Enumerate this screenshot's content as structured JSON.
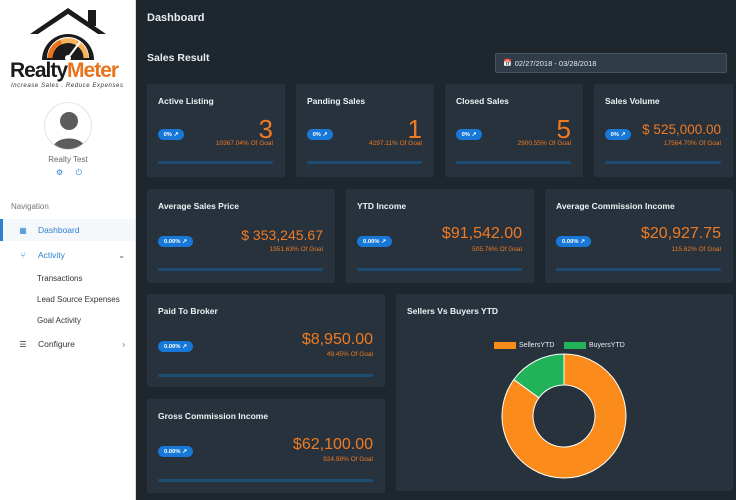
{
  "brand": {
    "name_part1": "Realty",
    "name_part2": "Meter",
    "tagline": "Increase Sales . Reduce Expenses"
  },
  "user": {
    "name": "Realty Test",
    "icons": [
      "gear-icon",
      "power-icon"
    ]
  },
  "sidebar": {
    "section_title": "Navigation",
    "items": [
      {
        "label": "Dashboard",
        "icon": "dashboard-icon",
        "active": true
      },
      {
        "label": "Activity",
        "icon": "activity-icon",
        "expanded": true
      },
      {
        "label": "Transactions"
      },
      {
        "label": "Lead Source Expenses"
      },
      {
        "label": "Goal Activity"
      },
      {
        "label": "Configure",
        "icon": "list-icon"
      }
    ]
  },
  "header": {
    "title": "Dashboard"
  },
  "sales": {
    "title": "Sales Result",
    "date_range": "02/27/2018 - 03/28/2018"
  },
  "cards": {
    "active_listing": {
      "title": "Active Listing",
      "badge": "0%",
      "value": "3",
      "goal": "10367.04% Of Goal"
    },
    "pending_sales": {
      "title": "Panding Sales",
      "badge": "0%",
      "value": "1",
      "goal": "4297.11% Of Goal"
    },
    "closed_sales": {
      "title": "Closed Sales",
      "badge": "0%",
      "value": "5",
      "goal": "2900.55% Of Goal"
    },
    "sales_volume": {
      "title": "Sales Volume",
      "badge": "0%",
      "value": "$ 525,000.00",
      "goal": "17564.70% Of Goal"
    },
    "avg_sales_price": {
      "title": "Average Sales Price",
      "badge": "0.00%",
      "value": "$ 353,245.67",
      "goal": "1951.63% Of Goal"
    },
    "ytd_income": {
      "title": "YTD Income",
      "badge": "0.00%",
      "value": "$91,542.00",
      "goal": "505.76% Of Goal"
    },
    "avg_commission": {
      "title": "Average Commission Income",
      "badge": "0.00%",
      "value": "$20,927.75",
      "goal": "115.62% Of Goal"
    },
    "paid_to_broker": {
      "title": "Paid To Broker",
      "badge": "0.00%",
      "value": "$8,950.00",
      "goal": "49.45% Of Goal"
    },
    "gross_commission": {
      "title": "Gross Commission Income",
      "badge": "0.00%",
      "value": "$62,100.00",
      "goal": "924.98% Of Goal"
    }
  },
  "chart_data": {
    "type": "pie",
    "title": "Sellers Vs Buyers YTD",
    "categories": [
      "SellersYTD",
      "BuyersYTD"
    ],
    "values": [
      85,
      15
    ],
    "colors": [
      "#fb8c1b",
      "#22b25a"
    ],
    "legend_position": "top"
  },
  "colors": {
    "accent_orange": "#ef7a22",
    "accent_blue": "#1878d8",
    "sidebar_active": "#2d7fd0",
    "card_bg": "#28323c",
    "page_bg": "#1e262e"
  }
}
